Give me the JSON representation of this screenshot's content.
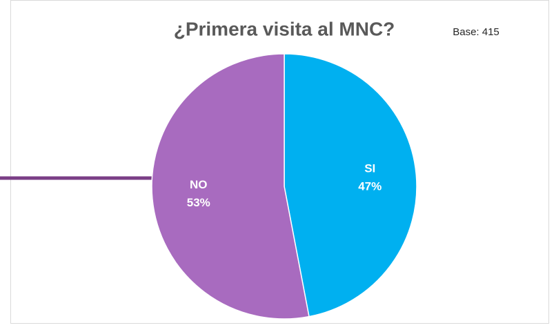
{
  "chart_data": {
    "type": "pie",
    "title": "¿Primera visita al MNC?",
    "annotation": "Base: 415",
    "categories": [
      "SI",
      "NO"
    ],
    "values": [
      47,
      53
    ],
    "value_labels": [
      "47%",
      "53%"
    ],
    "colors": [
      "#00b0f0",
      "#a86bbf"
    ]
  }
}
